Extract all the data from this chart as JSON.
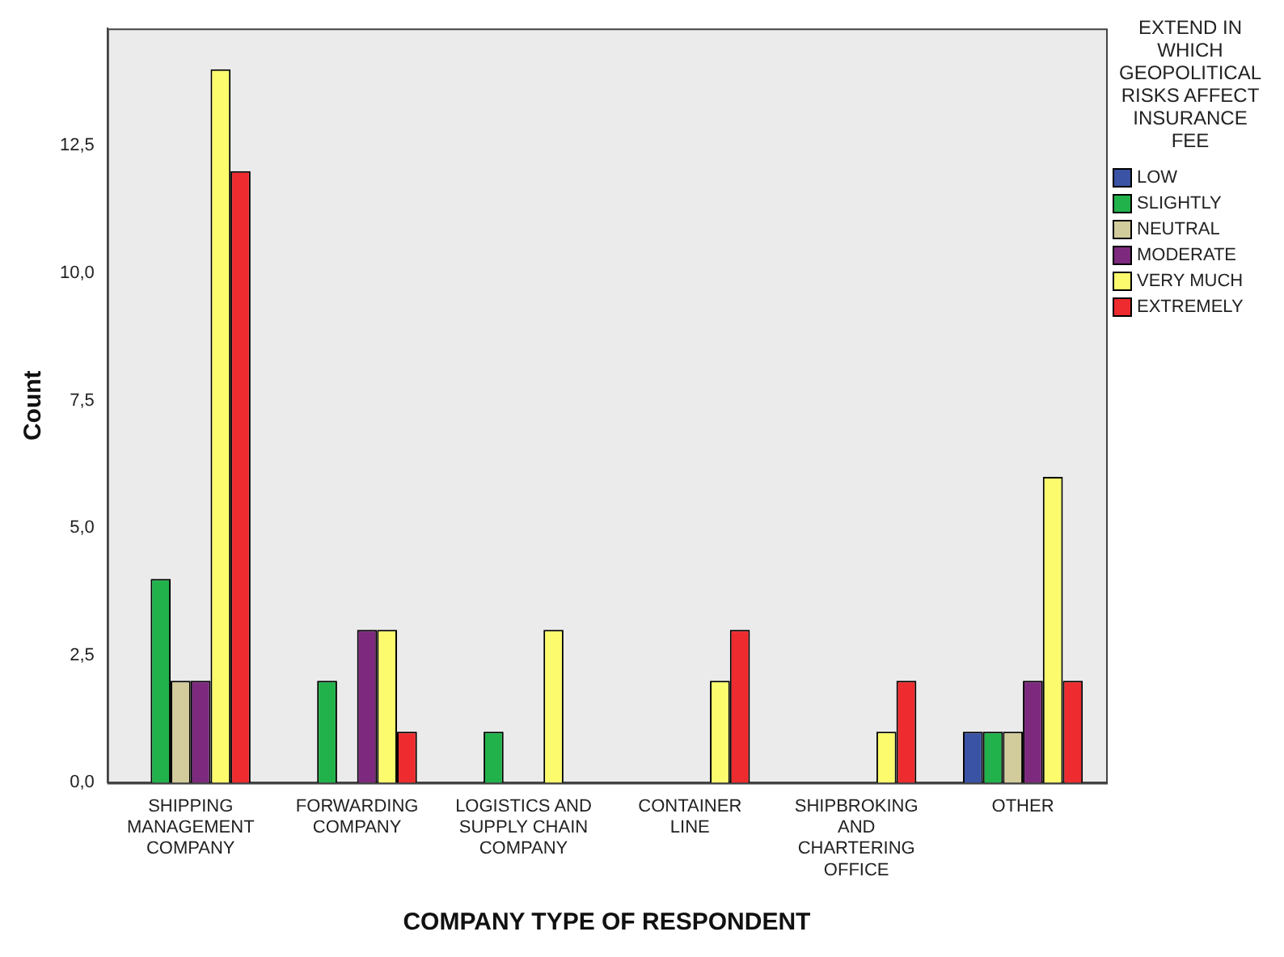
{
  "chart_data": {
    "type": "bar",
    "xlabel": "COMPANY TYPE OF RESPONDENT",
    "ylabel": "Count",
    "legend_title": "EXTEND IN WHICH GEOPOLITICAL RISKS AFFECT INSURANCE FEE",
    "legend": "right",
    "categories": [
      "SHIPPING MANAGEMENT COMPANY",
      "FORWARDING COMPANY",
      "LOGISTICS AND SUPPLY CHAIN COMPANY",
      "CONTAINER LINE",
      "SHIPBROKING AND CHARTERING OFFICE",
      "OTHER"
    ],
    "series": [
      {
        "name": "LOW",
        "color": "#3a53a4",
        "values": [
          0,
          0,
          0,
          0,
          0,
          1
        ]
      },
      {
        "name": "SLIGHTLY",
        "color": "#21b24b",
        "values": [
          4,
          2,
          1,
          0,
          0,
          1
        ]
      },
      {
        "name": "NEUTRAL",
        "color": "#d2cb9c",
        "values": [
          2,
          0,
          0,
          0,
          0,
          1
        ]
      },
      {
        "name": "MODERATE",
        "color": "#7d2a7e",
        "values": [
          2,
          3,
          0,
          0,
          0,
          2
        ]
      },
      {
        "name": "VERY MUCH",
        "color": "#fbfb6d",
        "values": [
          14,
          3,
          3,
          2,
          1,
          6
        ]
      },
      {
        "name": "EXTREMELY",
        "color": "#ee2b2e",
        "values": [
          12,
          1,
          0,
          3,
          2,
          2
        ]
      }
    ],
    "ylim": [
      0,
      14.8
    ],
    "yticks": [
      {
        "value": 0,
        "label": "0,0"
      },
      {
        "value": 2.5,
        "label": "2,5"
      },
      {
        "value": 5,
        "label": "5,0"
      },
      {
        "value": 7.5,
        "label": "7,5"
      },
      {
        "value": 10,
        "label": "10,0"
      },
      {
        "value": 12.5,
        "label": "12,5"
      }
    ],
    "grid": false
  }
}
